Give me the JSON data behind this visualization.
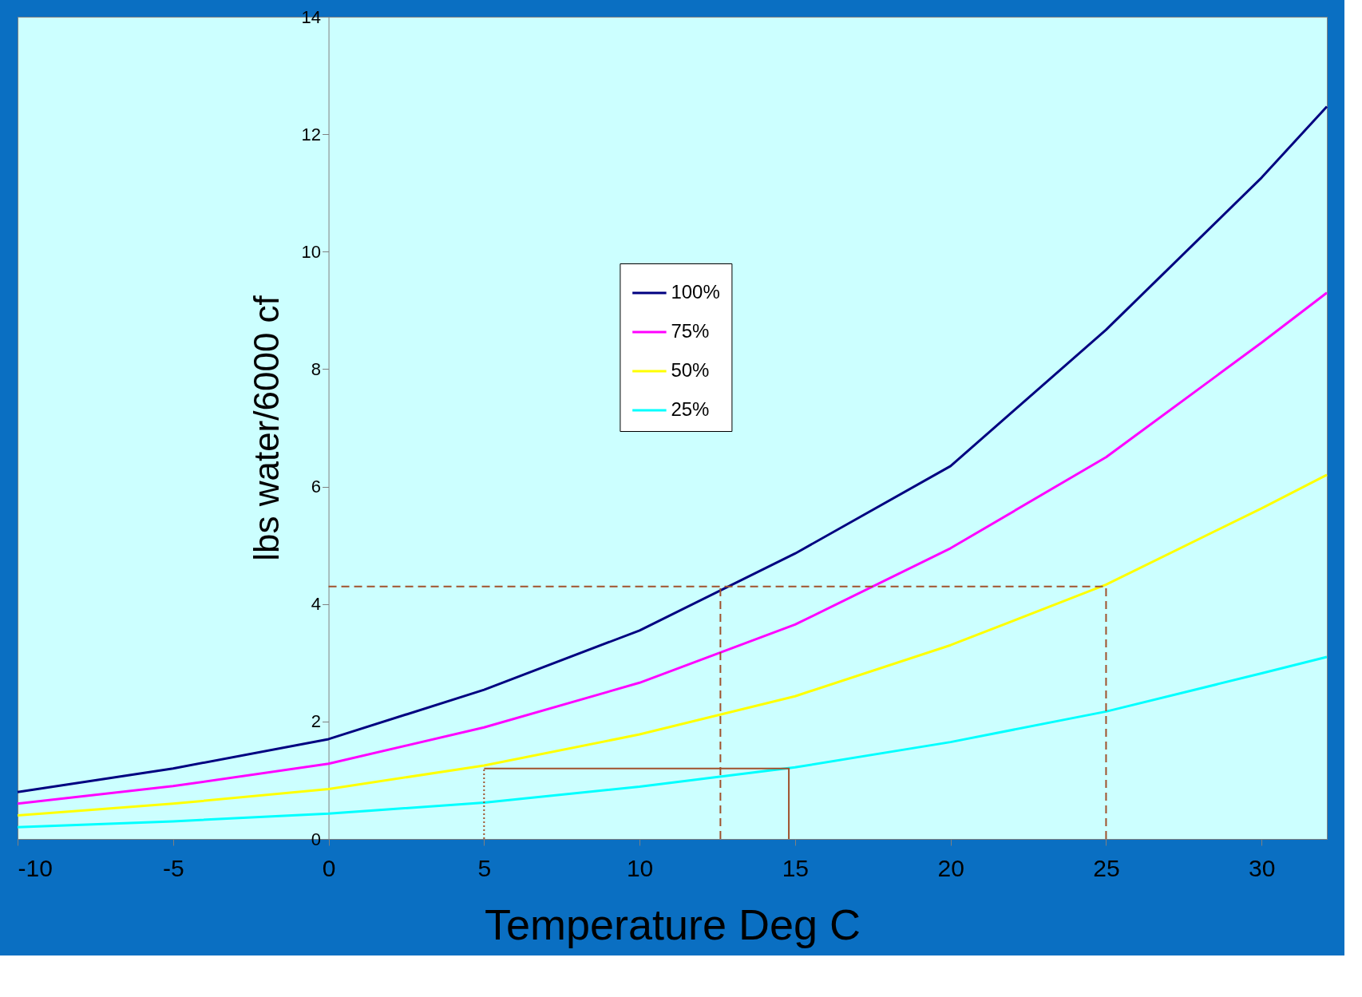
{
  "chart_data": {
    "type": "line",
    "xlabel": "Temperature Deg C",
    "ylabel": "lbs water/6000 cf",
    "xlim": [
      -10,
      32.1
    ],
    "ylim": [
      0,
      14
    ],
    "xticks": [
      -10,
      -5,
      0,
      5,
      10,
      15,
      20,
      25,
      30
    ],
    "yticks": [
      0,
      2,
      4,
      6,
      8,
      10,
      12,
      14
    ],
    "grid": false,
    "legend": "top",
    "marker": "none",
    "line_style": "solid",
    "x": [
      -10,
      -5,
      0,
      5,
      10,
      15,
      20,
      25,
      30,
      32.1
    ],
    "series": [
      {
        "name": "100%",
        "color": "#000080",
        "values": [
          0.8,
          1.2,
          1.7,
          2.54,
          3.55,
          4.86,
          6.35,
          8.67,
          11.26,
          12.47
        ]
      },
      {
        "name": "75%",
        "color": "#ff00ff",
        "values": [
          0.6,
          0.9,
          1.28,
          1.9,
          2.66,
          3.65,
          4.95,
          6.5,
          8.45,
          9.3
        ]
      },
      {
        "name": "50%",
        "color": "#ffff00",
        "values": [
          0.4,
          0.6,
          0.85,
          1.25,
          1.78,
          2.43,
          3.3,
          4.33,
          5.63,
          6.2
        ]
      },
      {
        "name": "25%",
        "color": "#00ffff",
        "values": [
          0.2,
          0.3,
          0.43,
          0.62,
          0.89,
          1.22,
          1.65,
          2.17,
          2.82,
          3.1
        ]
      },
      {
        "type": "line",
        "color": "#a0522d",
        "line_style": "dashed",
        "x": [
          0,
          25
        ],
        "values": [
          4.3,
          4.3
        ]
      },
      {
        "type": "line",
        "color": "#a0522d",
        "line_style": "dashed",
        "x": [
          12.6,
          12.6
        ],
        "values": [
          0,
          4.3
        ]
      },
      {
        "type": "line",
        "color": "#a0522d",
        "line_style": "dashed",
        "x": [
          25,
          25
        ],
        "values": [
          0,
          4.3
        ]
      },
      {
        "type": "line",
        "color": "#a0522d",
        "line_style": "dotted",
        "x": [
          5,
          5
        ],
        "values": [
          0,
          1.2
        ]
      },
      {
        "type": "line",
        "color": "#a0522d",
        "line_style": "solid",
        "x": [
          5,
          14.8,
          14.8
        ],
        "values": [
          1.2,
          1.2,
          0
        ]
      }
    ]
  }
}
